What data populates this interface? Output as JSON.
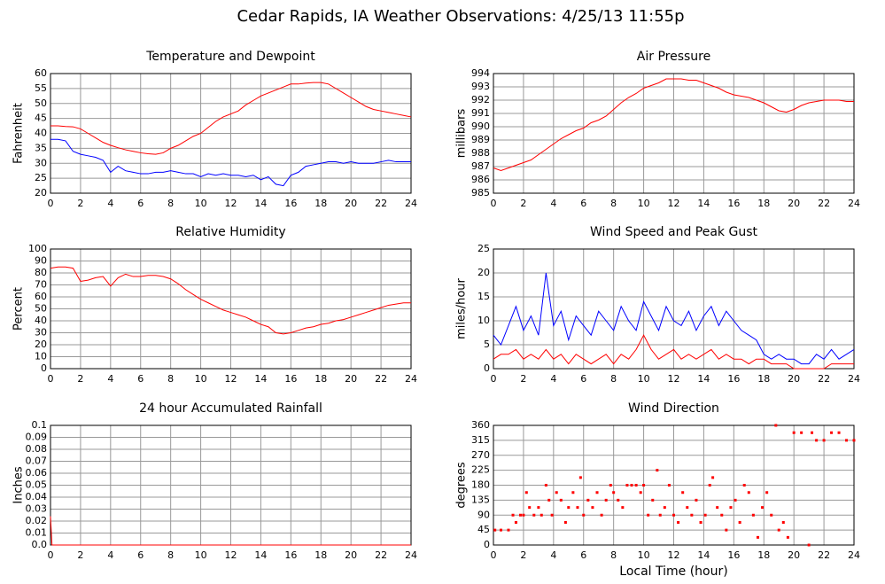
{
  "title": "Cedar Rapids, IA Weather Observations: 4/25/13 11:55p",
  "chart_data": [
    {
      "type": "line",
      "title": "Temperature and Dewpoint",
      "ylabel": "Fahrenheit",
      "x": [
        0,
        0.5,
        1,
        1.5,
        2,
        2.5,
        3,
        3.5,
        4,
        4.5,
        5,
        5.5,
        6,
        6.5,
        7,
        7.5,
        8,
        8.5,
        9,
        9.5,
        10,
        10.5,
        11,
        11.5,
        12,
        12.5,
        13,
        13.5,
        14,
        14.5,
        15,
        15.5,
        16,
        16.5,
        17,
        17.5,
        18,
        18.5,
        19,
        19.5,
        20,
        20.5,
        21,
        21.5,
        22,
        22.5,
        23,
        23.5,
        24
      ],
      "series": [
        {
          "color": "#ff0000",
          "values": [
            42.5,
            42.5,
            42.3,
            42.2,
            41.5,
            40,
            38.5,
            37,
            36,
            35.2,
            34.5,
            34,
            33.5,
            33.2,
            33,
            33.5,
            35,
            36,
            37.5,
            39,
            40,
            42,
            44,
            45.5,
            46.5,
            47.5,
            49.5,
            51,
            52.5,
            53.5,
            54.5,
            55.5,
            56.5,
            56.5,
            56.8,
            57,
            57,
            56.5,
            55,
            53.5,
            52,
            50.5,
            49,
            48,
            47.5,
            47,
            46.5,
            46,
            45.5
          ]
        },
        {
          "color": "#0000ff",
          "values": [
            38,
            38,
            37.5,
            34,
            33,
            32.5,
            32,
            31,
            27,
            29,
            27.5,
            27,
            26.5,
            26.5,
            27,
            27,
            27.5,
            27,
            26.5,
            26.5,
            25.5,
            26.5,
            26,
            26.5,
            26,
            26,
            25.5,
            26,
            24.5,
            25.5,
            23,
            22.5,
            26,
            27,
            29,
            29.5,
            30,
            30.5,
            30.5,
            30,
            30.5,
            30,
            30,
            30,
            30.5,
            31,
            30.5,
            30.5,
            30.5
          ]
        }
      ],
      "xlim": [
        0,
        24
      ],
      "xticks": [
        0,
        2,
        4,
        6,
        8,
        10,
        12,
        14,
        16,
        18,
        20,
        22,
        24
      ],
      "ylim": [
        20,
        60
      ],
      "yticks": [
        20,
        25,
        30,
        35,
        40,
        45,
        50,
        55,
        60
      ],
      "grid": true
    },
    {
      "type": "line",
      "title": "Air Pressure",
      "ylabel": "millibars",
      "x": [
        0,
        0.5,
        1,
        1.5,
        2,
        2.5,
        3,
        3.5,
        4,
        4.5,
        5,
        5.5,
        6,
        6.5,
        7,
        7.5,
        8,
        8.5,
        9,
        9.5,
        10,
        10.5,
        11,
        11.5,
        12,
        12.5,
        13,
        13.5,
        14,
        14.5,
        15,
        15.5,
        16,
        16.5,
        17,
        17.5,
        18,
        18.5,
        19,
        19.5,
        20,
        20.5,
        21,
        21.5,
        22,
        22.5,
        23,
        23.5,
        24
      ],
      "series": [
        {
          "color": "#ff0000",
          "values": [
            986.9,
            986.7,
            986.9,
            987.1,
            987.3,
            987.5,
            987.9,
            988.3,
            988.7,
            989.1,
            989.4,
            989.7,
            989.9,
            990.3,
            990.5,
            990.8,
            991.3,
            991.8,
            992.2,
            992.5,
            992.9,
            993.1,
            993.3,
            993.6,
            993.6,
            993.6,
            993.5,
            993.5,
            993.3,
            993.1,
            992.9,
            992.6,
            992.4,
            992.3,
            992.2,
            992,
            991.8,
            991.5,
            991.2,
            991.1,
            991.3,
            991.6,
            991.8,
            991.9,
            992,
            992,
            992,
            991.9,
            991.9
          ]
        }
      ],
      "xlim": [
        0,
        24
      ],
      "xticks": [
        0,
        2,
        4,
        6,
        8,
        10,
        12,
        14,
        16,
        18,
        20,
        22,
        24
      ],
      "ylim": [
        985,
        994
      ],
      "yticks": [
        985,
        986,
        987,
        988,
        989,
        990,
        991,
        992,
        993,
        994
      ],
      "grid": true
    },
    {
      "type": "line",
      "title": "Relative Humidity",
      "ylabel": "Percent",
      "x": [
        0,
        0.5,
        1,
        1.5,
        2,
        2.5,
        3,
        3.5,
        4,
        4.5,
        5,
        5.5,
        6,
        6.5,
        7,
        7.5,
        8,
        8.5,
        9,
        9.5,
        10,
        10.5,
        11,
        11.5,
        12,
        12.5,
        13,
        13.5,
        14,
        14.5,
        15,
        15.5,
        16,
        16.5,
        17,
        17.5,
        18,
        18.5,
        19,
        19.5,
        20,
        20.5,
        21,
        21.5,
        22,
        22.5,
        23,
        23.5,
        24
      ],
      "series": [
        {
          "color": "#ff0000",
          "values": [
            84,
            85,
            85,
            84,
            73,
            74,
            76,
            77,
            69,
            76,
            79,
            77,
            77,
            78,
            78,
            77,
            75,
            71,
            66,
            62,
            58,
            55,
            52,
            49,
            47,
            45,
            43,
            40,
            37,
            35,
            30,
            29,
            30,
            32,
            34,
            35,
            37,
            38,
            40,
            41,
            43,
            45,
            47,
            49,
            51,
            53,
            54,
            55,
            55
          ]
        }
      ],
      "xlim": [
        0,
        24
      ],
      "xticks": [
        0,
        2,
        4,
        6,
        8,
        10,
        12,
        14,
        16,
        18,
        20,
        22,
        24
      ],
      "ylim": [
        0,
        100
      ],
      "yticks": [
        0,
        10,
        20,
        30,
        40,
        50,
        60,
        70,
        80,
        90,
        100
      ],
      "grid": true
    },
    {
      "type": "line",
      "title": "Wind Speed and Peak Gust",
      "ylabel": "miles/hour",
      "x": [
        0,
        0.5,
        1,
        1.5,
        2,
        2.5,
        3,
        3.5,
        4,
        4.5,
        5,
        5.5,
        6,
        6.5,
        7,
        7.5,
        8,
        8.5,
        9,
        9.5,
        10,
        10.5,
        11,
        11.5,
        12,
        12.5,
        13,
        13.5,
        14,
        14.5,
        15,
        15.5,
        16,
        16.5,
        17,
        17.5,
        18,
        18.5,
        19,
        19.5,
        20,
        20.5,
        21,
        21.5,
        22,
        22.5,
        23,
        23.5,
        24
      ],
      "series": [
        {
          "color": "#0000ff",
          "values": [
            7,
            5,
            9,
            13,
            8,
            11,
            7,
            20,
            9,
            12,
            6,
            11,
            9,
            7,
            12,
            10,
            8,
            13,
            10,
            8,
            14,
            11,
            8,
            13,
            10,
            9,
            12,
            8,
            11,
            13,
            9,
            12,
            10,
            8,
            7,
            6,
            3,
            2,
            3,
            2,
            2,
            1,
            1,
            3,
            2,
            4,
            2,
            3,
            4
          ]
        },
        {
          "color": "#ff0000",
          "values": [
            2,
            3,
            3,
            4,
            2,
            3,
            2,
            4,
            2,
            3,
            1,
            3,
            2,
            1,
            2,
            3,
            1,
            3,
            2,
            4,
            7,
            4,
            2,
            3,
            4,
            2,
            3,
            2,
            3,
            4,
            2,
            3,
            2,
            2,
            1,
            2,
            2,
            1,
            1,
            1,
            0,
            0,
            0,
            0,
            0,
            1,
            1,
            1,
            1
          ]
        }
      ],
      "xlim": [
        0,
        24
      ],
      "xticks": [
        0,
        2,
        4,
        6,
        8,
        10,
        12,
        14,
        16,
        18,
        20,
        22,
        24
      ],
      "ylim": [
        0,
        25
      ],
      "yticks": [
        0,
        5,
        10,
        15,
        20,
        25
      ],
      "grid": true
    },
    {
      "type": "line",
      "title": "24 hour Accumulated Rainfall",
      "ylabel": "Inches",
      "x": [
        0,
        0.1,
        24
      ],
      "series": [
        {
          "color": "#ff0000",
          "values": [
            0.024,
            0,
            0
          ]
        }
      ],
      "xlim": [
        0,
        24
      ],
      "xticks": [
        0,
        2,
        4,
        6,
        8,
        10,
        12,
        14,
        16,
        18,
        20,
        22,
        24
      ],
      "ylim": [
        0,
        0.1
      ],
      "yticks": [
        {
          "value": 0,
          "label": "0.0"
        },
        0.01,
        0.02,
        0.03,
        0.04,
        0.05,
        0.06,
        0.07,
        0.08,
        0.09,
        0.1
      ],
      "grid": true
    },
    {
      "type": "scatter",
      "title": "Wind Direction",
      "ylabel": "degrees",
      "xlabel": "Local Time (hour)",
      "color": "#ff0000",
      "x": [
        0.1,
        0.5,
        1,
        1.3,
        1.5,
        1.8,
        2,
        2.2,
        2.4,
        2.7,
        3,
        3.2,
        3.5,
        3.7,
        3.9,
        4.2,
        4.5,
        4.8,
        5,
        5.3,
        5.6,
        5.8,
        6,
        6.3,
        6.6,
        6.9,
        7.2,
        7.5,
        7.8,
        8,
        8.3,
        8.6,
        8.9,
        9.2,
        9.5,
        9.8,
        10,
        10.3,
        10.6,
        10.9,
        11.1,
        11.4,
        11.7,
        12,
        12.3,
        12.6,
        12.9,
        13.2,
        13.5,
        13.8,
        14.1,
        14.4,
        14.6,
        14.9,
        15.2,
        15.5,
        15.8,
        16.1,
        16.4,
        16.7,
        17,
        17.3,
        17.6,
        17.9,
        18.2,
        18.5,
        18.8,
        19,
        19.3,
        19.6,
        20,
        20.5,
        21,
        21.2,
        21.5,
        22,
        22.5,
        23,
        23.5,
        24
      ],
      "values": [
        45,
        45,
        45,
        90,
        68,
        90,
        90,
        158,
        113,
        90,
        113,
        90,
        180,
        135,
        90,
        158,
        135,
        68,
        113,
        158,
        113,
        203,
        90,
        135,
        113,
        158,
        90,
        135,
        180,
        158,
        135,
        113,
        180,
        180,
        180,
        158,
        180,
        90,
        135,
        225,
        90,
        113,
        180,
        90,
        68,
        158,
        113,
        90,
        135,
        68,
        90,
        180,
        203,
        113,
        90,
        45,
        113,
        135,
        68,
        180,
        158,
        90,
        23,
        113,
        158,
        90,
        360,
        45,
        68,
        23,
        338,
        338,
        0,
        338,
        315,
        315,
        338,
        338,
        315,
        315
      ],
      "xlim": [
        0,
        24
      ],
      "xticks": [
        0,
        2,
        4,
        6,
        8,
        10,
        12,
        14,
        16,
        18,
        20,
        22,
        24
      ],
      "ylim": [
        0,
        360
      ],
      "yticks": [
        0,
        45,
        90,
        135,
        180,
        225,
        270,
        315,
        360
      ],
      "grid": true
    }
  ]
}
